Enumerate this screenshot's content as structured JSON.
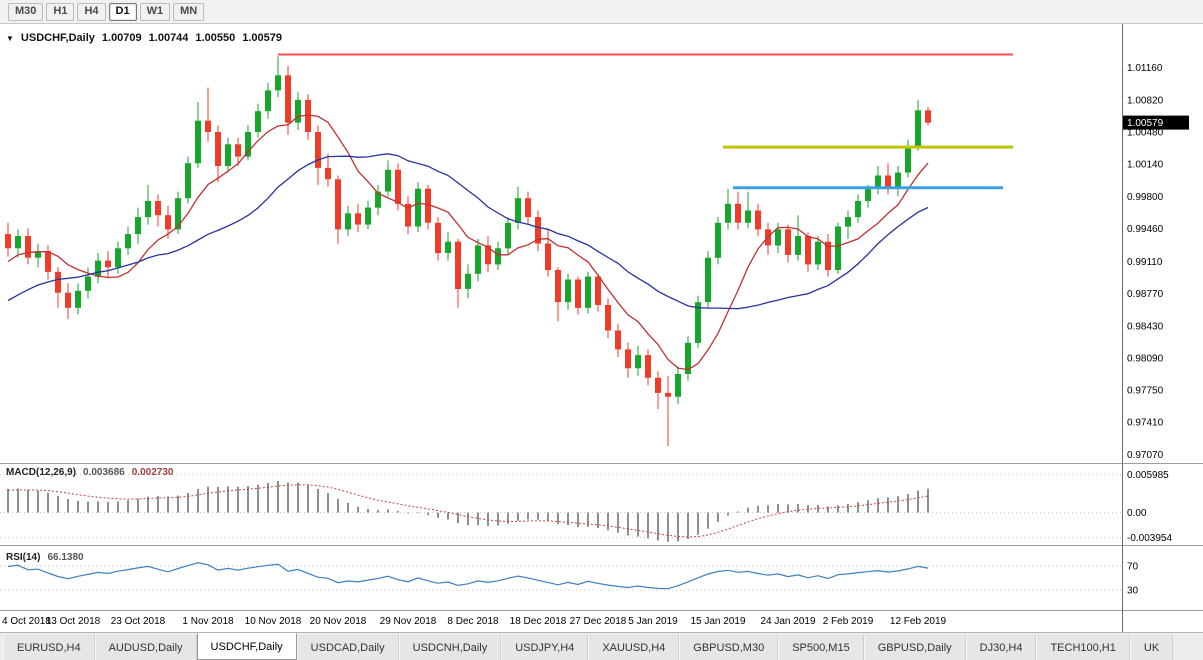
{
  "toolbar": {
    "periods": [
      {
        "label": "M30",
        "active": false
      },
      {
        "label": "H1",
        "active": false
      },
      {
        "label": "H4",
        "active": false
      },
      {
        "label": "D1",
        "active": true
      },
      {
        "label": "W1",
        "active": false
      },
      {
        "label": "MN",
        "active": false
      }
    ]
  },
  "header": {
    "dropdown_icon": "▼",
    "symbol": "USDCHF,Daily",
    "open": "1.00709",
    "high": "1.00744",
    "low": "1.00550",
    "close": "1.00579"
  },
  "price_scale": {
    "labels": [
      "1.01160",
      "1.00820",
      "1.00480",
      "1.00140",
      "0.99800",
      "0.99460",
      "0.99110",
      "0.98770",
      "0.98430",
      "0.98090",
      "0.97750",
      "0.97410",
      "0.97070"
    ],
    "current_price": "1.00579"
  },
  "indicators": {
    "macd": {
      "label": "MACD(12,26,9)",
      "value_main": "0.003686",
      "value_signal": "0.002730",
      "params": [
        12,
        26,
        9
      ],
      "scale_labels": [
        "0.005985",
        "0.00",
        "-0.003954"
      ],
      "scale_values": [
        0.005985,
        0,
        -0.003954
      ]
    },
    "rsi": {
      "label": "RSI(14)",
      "value": "66.1380",
      "period": 14,
      "levels": [
        70,
        30
      ]
    }
  },
  "chart_data": {
    "type": "candlestick",
    "symbol": "USDCHF",
    "timeframe": "Daily",
    "y_range": [
      0.97,
      1.0158
    ],
    "colors": {
      "up": "#17a62c",
      "down": "#f03b28",
      "ma_fast": "#c03030",
      "ma_slow": "#2633a0",
      "line_red": "#ff5252",
      "line_yellow": "#bdc400",
      "line_blue": "#39a0e5",
      "macd_bar": "#8f8f8f",
      "macd_signal": "#cc4040",
      "rsi_line": "#3f7fc1"
    },
    "moving_averages": [
      {
        "name": "ma-fast-line",
        "period": 8,
        "color": "#c03030"
      },
      {
        "name": "ma-slow-line",
        "period": 21,
        "color": "#2633a0"
      }
    ],
    "lines": [
      {
        "name": "resistance-line-red",
        "color": "#ff5252",
        "price": 1.013,
        "start": 27,
        "end": 100.5,
        "w": 2
      },
      {
        "name": "resistance-line-yellow",
        "color": "#bdc400",
        "price": 1.0032,
        "start": 71.5,
        "end": 100.5,
        "w": 3
      },
      {
        "name": "support-line-blue",
        "color": "#39a0e5",
        "price": 0.9989,
        "start": 72.5,
        "end": 99.5,
        "w": 3
      }
    ],
    "x_labels": [
      {
        "text": "4 Oct 2018",
        "i": 0
      },
      {
        "text": "13 Oct 2018",
        "i": 6.5
      },
      {
        "text": "23 Oct 2018",
        "i": 13
      },
      {
        "text": "1 Nov 2018",
        "i": 20
      },
      {
        "text": "10 Nov 2018",
        "i": 26.5
      },
      {
        "text": "20 Nov 2018",
        "i": 33
      },
      {
        "text": "29 Nov 2018",
        "i": 40
      },
      {
        "text": "8 Dec 2018",
        "i": 46.5
      },
      {
        "text": "18 Dec 2018",
        "i": 53
      },
      {
        "text": "27 Dec 2018",
        "i": 59
      },
      {
        "text": "5 Jan 2019",
        "i": 64.5
      },
      {
        "text": "15 Jan 2019",
        "i": 71
      },
      {
        "text": "24 Jan 2019",
        "i": 78
      },
      {
        "text": "2 Feb 2019",
        "i": 84
      },
      {
        "text": "12 Feb 2019",
        "i": 91
      }
    ],
    "ohlc": [
      [
        "2018-10-04",
        0.994,
        0.9952,
        0.9916,
        0.9925
      ],
      [
        "2018-10-05",
        0.9925,
        0.9945,
        0.9915,
        0.9938
      ],
      [
        "2018-10-08",
        0.9938,
        0.9946,
        0.9908,
        0.9915
      ],
      [
        "2018-10-09",
        0.9915,
        0.993,
        0.9905,
        0.9922
      ],
      [
        "2018-10-10",
        0.9922,
        0.9928,
        0.9892,
        0.99
      ],
      [
        "2018-10-11",
        0.99,
        0.9905,
        0.9862,
        0.9878
      ],
      [
        "2018-10-12",
        0.9878,
        0.9888,
        0.985,
        0.9862
      ],
      [
        "2018-10-15",
        0.9862,
        0.9888,
        0.9855,
        0.988
      ],
      [
        "2018-10-16",
        0.988,
        0.9905,
        0.9872,
        0.9895
      ],
      [
        "2018-10-17",
        0.9895,
        0.992,
        0.9888,
        0.9912
      ],
      [
        "2018-10-18",
        0.9912,
        0.9922,
        0.9895,
        0.9905
      ],
      [
        "2018-10-19",
        0.9905,
        0.9932,
        0.9898,
        0.9925
      ],
      [
        "2018-10-22",
        0.9925,
        0.9948,
        0.9918,
        0.994
      ],
      [
        "2018-10-23",
        0.994,
        0.9968,
        0.993,
        0.9958
      ],
      [
        "2018-10-24",
        0.9958,
        0.9992,
        0.995,
        0.9975
      ],
      [
        "2018-10-25",
        0.9975,
        0.9982,
        0.9948,
        0.996
      ],
      [
        "2018-10-26",
        0.996,
        0.997,
        0.9935,
        0.9945
      ],
      [
        "2018-10-29",
        0.9945,
        0.9985,
        0.994,
        0.9978
      ],
      [
        "2018-10-30",
        0.9978,
        1.0022,
        0.9972,
        1.0015
      ],
      [
        "2018-10-31",
        1.0015,
        1.008,
        1.001,
        1.006
      ],
      [
        "2018-11-01",
        1.006,
        1.0095,
        1.0038,
        1.0048
      ],
      [
        "2018-11-02",
        1.0048,
        1.0055,
        0.9995,
        1.0012
      ],
      [
        "2018-11-05",
        1.0012,
        1.0042,
        1.0005,
        1.0035
      ],
      [
        "2018-11-06",
        1.0035,
        1.0042,
        1.0012,
        1.0022
      ],
      [
        "2018-11-07",
        1.0022,
        1.0055,
        1.0018,
        1.0048
      ],
      [
        "2018-11-08",
        1.0048,
        1.0078,
        1.0042,
        1.007
      ],
      [
        "2018-11-09",
        1.007,
        1.01,
        1.0062,
        1.0092
      ],
      [
        "2018-11-12",
        1.0092,
        1.0128,
        1.0085,
        1.0108
      ],
      [
        "2018-11-13",
        1.0108,
        1.0118,
        1.0045,
        1.0058
      ],
      [
        "2018-11-14",
        1.0058,
        1.009,
        1.005,
        1.0082
      ],
      [
        "2018-11-15",
        1.0082,
        1.0088,
        1.004,
        1.0048
      ],
      [
        "2018-11-16",
        1.0048,
        1.0055,
        0.9992,
        1.001
      ],
      [
        "2018-11-19",
        1.001,
        1.0025,
        0.999,
        0.9998
      ],
      [
        "2018-11-20",
        0.9998,
        1.0002,
        0.993,
        0.9945
      ],
      [
        "2018-11-21",
        0.9945,
        0.997,
        0.9938,
        0.9962
      ],
      [
        "2018-11-22",
        0.9962,
        0.9972,
        0.9942,
        0.995
      ],
      [
        "2018-11-23",
        0.995,
        0.9975,
        0.9945,
        0.9968
      ],
      [
        "2018-11-26",
        0.9968,
        0.9992,
        0.996,
        0.9985
      ],
      [
        "2018-11-27",
        0.9985,
        1.0018,
        0.998,
        1.0008
      ],
      [
        "2018-11-28",
        1.0008,
        1.0015,
        0.9965,
        0.9972
      ],
      [
        "2018-11-29",
        0.9972,
        0.998,
        0.994,
        0.9948
      ],
      [
        "2018-11-30",
        0.9948,
        0.9995,
        0.9942,
        0.9988
      ],
      [
        "2018-12-03",
        0.9988,
        0.9992,
        0.9945,
        0.9952
      ],
      [
        "2018-12-04",
        0.9952,
        0.9958,
        0.9912,
        0.992
      ],
      [
        "2018-12-05",
        0.992,
        0.9942,
        0.9912,
        0.9932
      ],
      [
        "2018-12-06",
        0.9932,
        0.9935,
        0.9862,
        0.9882
      ],
      [
        "2018-12-07",
        0.9882,
        0.9908,
        0.9872,
        0.9898
      ],
      [
        "2018-12-10",
        0.9898,
        0.9935,
        0.989,
        0.9928
      ],
      [
        "2018-12-11",
        0.9928,
        0.9938,
        0.99,
        0.9908
      ],
      [
        "2018-12-12",
        0.9908,
        0.9932,
        0.9902,
        0.9925
      ],
      [
        "2018-12-13",
        0.9925,
        0.9958,
        0.9918,
        0.9952
      ],
      [
        "2018-12-14",
        0.9952,
        0.999,
        0.9945,
        0.9978
      ],
      [
        "2018-12-17",
        0.9978,
        0.9985,
        0.995,
        0.9958
      ],
      [
        "2018-12-18",
        0.9958,
        0.9965,
        0.9922,
        0.993
      ],
      [
        "2018-12-19",
        0.993,
        0.9945,
        0.9895,
        0.9902
      ],
      [
        "2018-12-20",
        0.9902,
        0.9905,
        0.9848,
        0.9868
      ],
      [
        "2018-12-21",
        0.9868,
        0.9898,
        0.986,
        0.9892
      ],
      [
        "2018-12-24",
        0.9892,
        0.9895,
        0.9855,
        0.9862
      ],
      [
        "2018-12-26",
        0.9862,
        0.99,
        0.9856,
        0.9895
      ],
      [
        "2018-12-27",
        0.9895,
        0.9898,
        0.9858,
        0.9865
      ],
      [
        "2018-12-28",
        0.9865,
        0.9872,
        0.983,
        0.9838
      ],
      [
        "2018-12-31",
        0.9838,
        0.9845,
        0.981,
        0.9818
      ],
      [
        "2019-01-02",
        0.9818,
        0.9825,
        0.9788,
        0.9798
      ],
      [
        "2019-01-03",
        0.9798,
        0.9822,
        0.979,
        0.9812
      ],
      [
        "2019-01-04",
        0.9812,
        0.9818,
        0.978,
        0.9788
      ],
      [
        "2019-01-07",
        0.9788,
        0.9795,
        0.9755,
        0.9772
      ],
      [
        "2019-01-08",
        0.9772,
        0.979,
        0.9716,
        0.9768
      ],
      [
        "2019-01-09",
        0.9768,
        0.98,
        0.976,
        0.9792
      ],
      [
        "2019-01-10",
        0.9792,
        0.9832,
        0.9785,
        0.9825
      ],
      [
        "2019-01-11",
        0.9825,
        0.9875,
        0.982,
        0.9868
      ],
      [
        "2019-01-14",
        0.9868,
        0.9922,
        0.9862,
        0.9915
      ],
      [
        "2019-01-15",
        0.9915,
        0.9958,
        0.9908,
        0.9952
      ],
      [
        "2019-01-16",
        0.9952,
        0.9988,
        0.9945,
        0.9972
      ],
      [
        "2019-01-17",
        0.9972,
        0.9985,
        0.9945,
        0.9952
      ],
      [
        "2019-01-18",
        0.9952,
        0.9985,
        0.9946,
        0.9965
      ],
      [
        "2019-01-21",
        0.9965,
        0.9972,
        0.9938,
        0.9945
      ],
      [
        "2019-01-22",
        0.9945,
        0.9952,
        0.9918,
        0.9928
      ],
      [
        "2019-01-23",
        0.9928,
        0.9952,
        0.992,
        0.9945
      ],
      [
        "2019-01-24",
        0.9945,
        0.995,
        0.991,
        0.9918
      ],
      [
        "2019-01-25",
        0.9918,
        0.996,
        0.9912,
        0.9938
      ],
      [
        "2019-01-28",
        0.9938,
        0.9942,
        0.99,
        0.9908
      ],
      [
        "2019-01-29",
        0.9908,
        0.9938,
        0.9902,
        0.9932
      ],
      [
        "2019-01-30",
        0.9932,
        0.994,
        0.9895,
        0.9902
      ],
      [
        "2019-01-31",
        0.9902,
        0.9952,
        0.9898,
        0.9948
      ],
      [
        "2019-02-01",
        0.9948,
        0.9965,
        0.9935,
        0.9958
      ],
      [
        "2019-02-04",
        0.9958,
        0.9982,
        0.9952,
        0.9975
      ],
      [
        "2019-02-05",
        0.9975,
        0.9992,
        0.9968,
        0.9988
      ],
      [
        "2019-02-06",
        0.9988,
        1.0012,
        0.9982,
        1.0002
      ],
      [
        "2019-02-07",
        1.0002,
        1.0015,
        0.9982,
        0.999
      ],
      [
        "2019-02-08",
        0.999,
        1.0012,
        0.998,
        1.0005
      ],
      [
        "2019-02-11",
        1.0005,
        1.004,
        1.0,
        1.0032
      ],
      [
        "2019-02-12",
        1.0032,
        1.0082,
        1.0028,
        1.0071
      ],
      [
        "2019-02-13",
        1.00709,
        1.00744,
        1.0055,
        1.00579
      ]
    ]
  },
  "tabs": [
    {
      "label": "EURUSD,H4",
      "active": false
    },
    {
      "label": "AUDUSD,Daily",
      "active": false
    },
    {
      "label": "USDCHF,Daily",
      "active": true
    },
    {
      "label": "USDCAD,Daily",
      "active": false
    },
    {
      "label": "USDCNH,Daily",
      "active": false
    },
    {
      "label": "USDJPY,H4",
      "active": false
    },
    {
      "label": "XAUUSD,H4",
      "active": false
    },
    {
      "label": "GBPUSD,M30",
      "active": false
    },
    {
      "label": "SP500,M15",
      "active": false
    },
    {
      "label": "GBPUSD,Daily",
      "active": false
    },
    {
      "label": "DJ30,H4",
      "active": false
    },
    {
      "label": "TECH100,H1",
      "active": false
    },
    {
      "label": "UK",
      "active": false
    }
  ]
}
